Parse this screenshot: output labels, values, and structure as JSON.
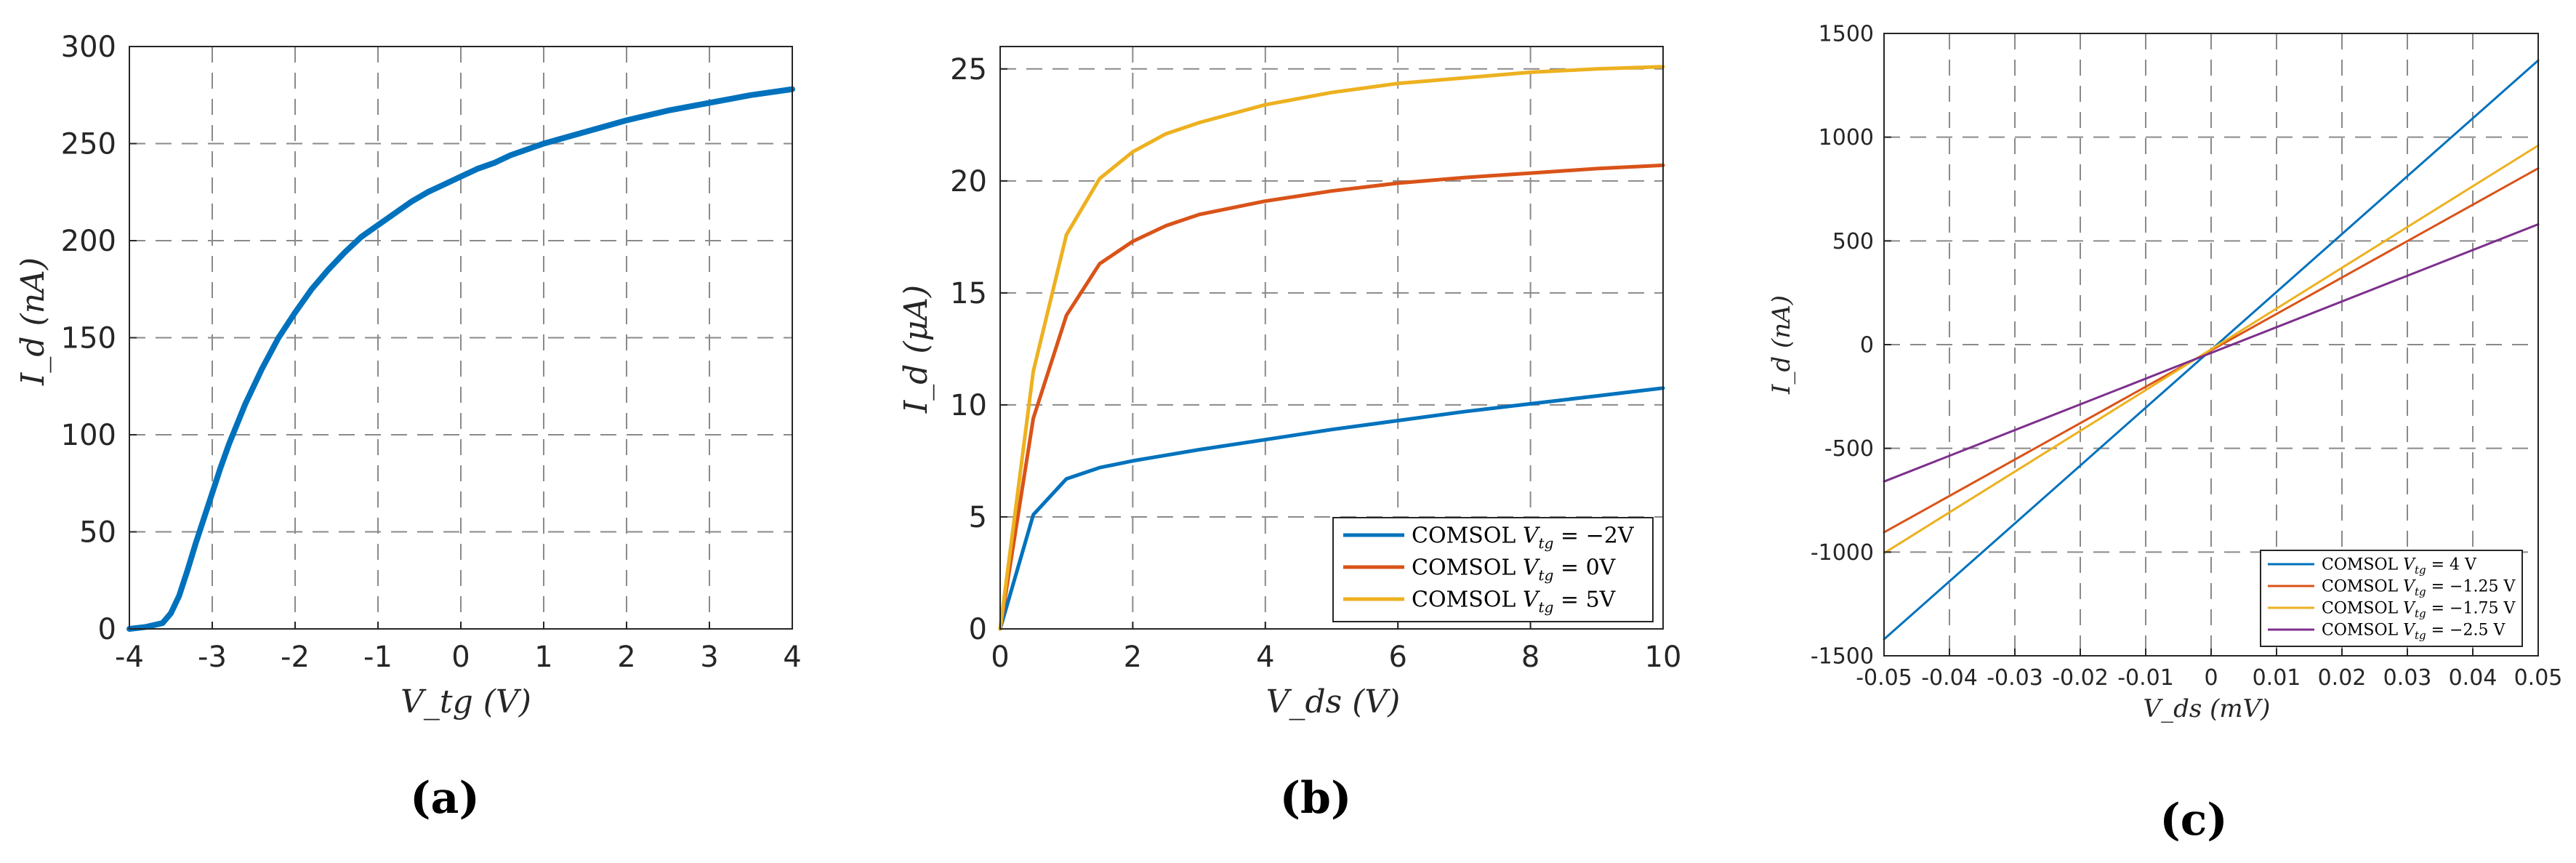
{
  "chart_data": [
    {
      "id": "a",
      "caption": "(a)",
      "type": "line",
      "xlabel": "V_tg (V)",
      "ylabel": "I_d (nA)",
      "xlim": [
        -4,
        4
      ],
      "ylim": [
        0,
        300
      ],
      "xticks": [
        "-4",
        "-3",
        "-2",
        "-1",
        "0",
        "1",
        "2",
        "3",
        "4"
      ],
      "yticks": [
        "0",
        "50",
        "100",
        "150",
        "200",
        "250",
        "300"
      ],
      "grid": true,
      "series": [
        {
          "name": "I_d",
          "color": "#0072BD",
          "x": [
            -4.0,
            -3.8,
            -3.6,
            -3.5,
            -3.4,
            -3.3,
            -3.2,
            -3.1,
            -3.0,
            -2.9,
            -2.8,
            -2.6,
            -2.4,
            -2.2,
            -2.0,
            -1.8,
            -1.6,
            -1.4,
            -1.2,
            -1.0,
            -0.8,
            -0.6,
            -0.4,
            -0.2,
            0.0,
            0.2,
            0.4,
            0.6,
            0.8,
            1.0,
            1.5,
            2.0,
            2.5,
            3.0,
            3.5,
            4.0
          ],
          "y": [
            0,
            1,
            3,
            8,
            17,
            30,
            44,
            57,
            70,
            83,
            95,
            116,
            134,
            150,
            163,
            175,
            185,
            194,
            202,
            208,
            214,
            220,
            225,
            229,
            233,
            237,
            240,
            244,
            247,
            250,
            256,
            262,
            267,
            271,
            275,
            278
          ]
        }
      ]
    },
    {
      "id": "b",
      "caption": "(b)",
      "type": "line",
      "xlabel": "V_ds (V)",
      "ylabel": "I_d (μA)",
      "xlim": [
        0,
        10
      ],
      "ylim": [
        0,
        26
      ],
      "xticks": [
        "0",
        "2",
        "4",
        "6",
        "8",
        "10"
      ],
      "yticks": [
        "0",
        "5",
        "10",
        "15",
        "20",
        "25"
      ],
      "grid": true,
      "legend_position": "bottom-right",
      "series": [
        {
          "name": "COMSOL V_tg = −2V",
          "label_main": "COMSOL ",
          "label_sub": "tg",
          "label_rest": " = −2V",
          "color": "#0072BD",
          "x": [
            0,
            0.5,
            1,
            1.5,
            2,
            2.5,
            3,
            4,
            5,
            6,
            7,
            8,
            9,
            10
          ],
          "y": [
            0,
            5.1,
            6.7,
            7.2,
            7.5,
            7.75,
            8.0,
            8.45,
            8.9,
            9.3,
            9.7,
            10.05,
            10.4,
            10.75
          ]
        },
        {
          "name": "COMSOL V_tg = 0V",
          "label_main": "COMSOL ",
          "label_sub": "tg",
          "label_rest": " = 0V",
          "color": "#D95319",
          "x": [
            0,
            0.5,
            1,
            1.5,
            2,
            2.5,
            3,
            4,
            5,
            6,
            7,
            8,
            9,
            10
          ],
          "y": [
            0,
            9.4,
            14.0,
            16.3,
            17.3,
            18.0,
            18.5,
            19.1,
            19.55,
            19.9,
            20.15,
            20.35,
            20.55,
            20.7
          ]
        },
        {
          "name": "COMSOL V_tg = 5V",
          "label_main": "COMSOL ",
          "label_sub": "tg",
          "label_rest": " = 5V",
          "color": "#EDB120",
          "x": [
            0,
            0.5,
            1,
            1.5,
            2,
            2.5,
            3,
            4,
            5,
            6,
            7,
            8,
            9,
            10
          ],
          "y": [
            0,
            11.5,
            17.6,
            20.1,
            21.3,
            22.1,
            22.6,
            23.4,
            23.95,
            24.35,
            24.6,
            24.85,
            25.0,
            25.1
          ]
        }
      ]
    },
    {
      "id": "c",
      "caption": "(c)",
      "type": "line",
      "xlabel": "V_ds (mV)",
      "ylabel": "I_d (nA)",
      "xlim": [
        -0.05,
        0.05
      ],
      "ylim": [
        -1500,
        1500
      ],
      "xticks": [
        "-0.05",
        "-0.04",
        "-0.03",
        "-0.02",
        "-0.01",
        "0",
        "0.01",
        "0.02",
        "0.03",
        "0.04",
        "0.05"
      ],
      "yticks": [
        "-1500",
        "-1000",
        "-500",
        "0",
        "500",
        "1000",
        "1500"
      ],
      "grid": true,
      "legend_position": "bottom-right",
      "series": [
        {
          "name": "COMSOL V_tg = 4 V",
          "label_main": "COMSOL ",
          "label_sub": "tg",
          "label_rest": " = 4 V",
          "color": "#0072BD",
          "x": [
            -0.05,
            0.05
          ],
          "y": [
            -1420,
            1370
          ]
        },
        {
          "name": "COMSOL V_tg = −1.25 V",
          "label_main": "COMSOL ",
          "label_sub": "tg",
          "label_rest": " = −1.25 V",
          "color": "#D95319",
          "x": [
            -0.05,
            0.05
          ],
          "y": [
            -905,
            850
          ]
        },
        {
          "name": "COMSOL V_tg = −1.75 V",
          "label_main": "COMSOL ",
          "label_sub": "tg",
          "label_rest": " = −1.75 V",
          "color": "#EDB120",
          "x": [
            -0.05,
            0.05
          ],
          "y": [
            -1005,
            960
          ]
        },
        {
          "name": "COMSOL V_tg = −2.5 V",
          "label_main": "COMSOL ",
          "label_sub": "tg",
          "label_rest": " = −2.5 V",
          "color": "#7E2F8E",
          "x": [
            -0.05,
            0.05
          ],
          "y": [
            -660,
            580
          ]
        }
      ]
    }
  ]
}
